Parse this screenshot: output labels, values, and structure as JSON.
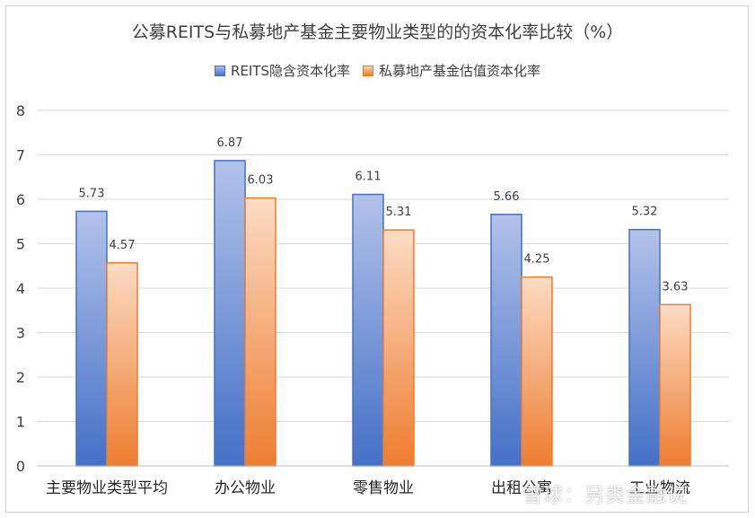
{
  "chart_data": {
    "type": "bar",
    "title": "公募REITS与私募地产基金主要物业类型的的资本化率比较（%）",
    "categories": [
      "主要物业类型平均",
      "办公物业",
      "零售物业",
      "出租公寓",
      "工业物流"
    ],
    "series": [
      {
        "name": "REITS隐含资本化率",
        "values": [
          5.73,
          6.87,
          6.11,
          5.66,
          5.32
        ],
        "color": "#4472c4"
      },
      {
        "name": "私募地产基金估值资本化率",
        "values": [
          4.57,
          6.03,
          5.31,
          4.25,
          3.63
        ],
        "color": "#ed7d31"
      }
    ],
    "data_labels": [
      [
        "5.73",
        "6.87",
        "6.11",
        "5.66",
        "5.32"
      ],
      [
        "4.57",
        "6.03",
        "5.31",
        "4.25",
        "3.63"
      ]
    ],
    "ylim": [
      0,
      8
    ],
    "yticks": [
      "0",
      "1",
      "2",
      "3",
      "4",
      "5",
      "6",
      "7",
      "8"
    ],
    "grid": true,
    "legend_position": "top"
  },
  "watermark": "雪球：另类金融说"
}
